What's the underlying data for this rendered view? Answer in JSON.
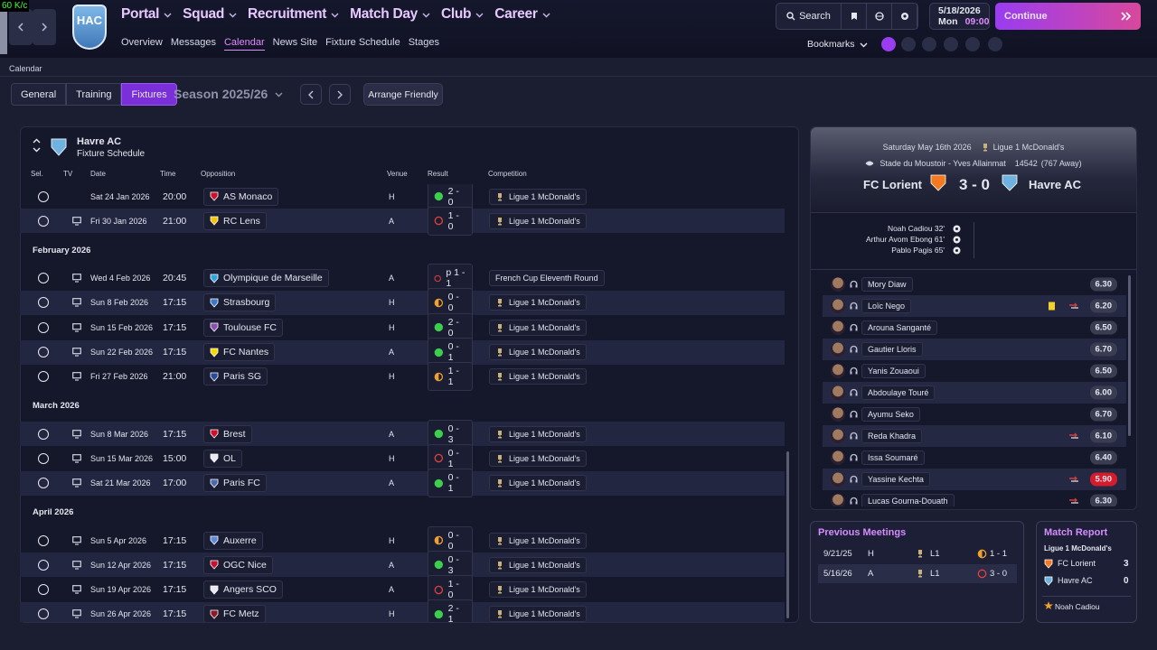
{
  "overlay": "60 K/c",
  "club_badge": "HAC",
  "nav": {
    "menu": [
      "Portal",
      "Squad",
      "Recruitment",
      "Match Day",
      "Club",
      "Career"
    ],
    "submenu": [
      "Overview",
      "Messages",
      "Calendar",
      "News Site",
      "Fixture Schedule",
      "Stages"
    ],
    "active_submenu": 2
  },
  "toolbar": {
    "search": "Search",
    "date": "5/18/2026",
    "weekday": "Mon",
    "time": "09:00",
    "continue": "Continue",
    "bookmarks": "Bookmarks"
  },
  "breadcrumb": "Calendar",
  "tabs": [
    "General",
    "Training",
    "Fixtures"
  ],
  "active_tab": 2,
  "season": "Season 2025/26",
  "arrange_friendly": "Arrange Friendly",
  "fixtures": {
    "team": "Havre AC",
    "subtitle": "Fixture Schedule",
    "columns": [
      "Sel.",
      "TV",
      "Date",
      "Time",
      "Opposition",
      "Venue",
      "Result",
      "Competition"
    ],
    "groups": [
      {
        "rows": [
          {
            "tv": false,
            "date": "Sat 24 Jan 2026",
            "time": "20:00",
            "opponent": "AS Monaco",
            "crest": "#d0102a",
            "venue": "H",
            "outcome": "win",
            "result": "2 - 0",
            "competition": "Ligue 1 McDonald's"
          },
          {
            "tv": true,
            "date": "Fri 30 Jan 2026",
            "time": "21:00",
            "opponent": "RC Lens",
            "crest": "#f5c400",
            "venue": "A",
            "outcome": "loss",
            "result": "1 - 0",
            "competition": "Ligue 1 McDonald's"
          }
        ]
      },
      {
        "heading": "February 2026",
        "rows": [
          {
            "tv": true,
            "date": "Wed 4 Feb 2026",
            "time": "20:45",
            "opponent": "Olympique de Marseille",
            "crest": "#2fa3dc",
            "venue": "A",
            "outcome": "loss",
            "result": "p 1 - 1",
            "competition": "French Cup Eleventh Round"
          },
          {
            "tv": true,
            "date": "Sun 8 Feb 2026",
            "time": "17:15",
            "opponent": "Strasbourg",
            "crest": "#3d78c8",
            "venue": "H",
            "outcome": "draw",
            "result": "0 - 0",
            "competition": "Ligue 1 McDonald's"
          },
          {
            "tv": true,
            "date": "Sun 15 Feb 2026",
            "time": "17:15",
            "opponent": "Toulouse FC",
            "crest": "#8a4fb0",
            "venue": "H",
            "outcome": "win",
            "result": "2 - 0",
            "competition": "Ligue 1 McDonald's"
          },
          {
            "tv": true,
            "date": "Sun 22 Feb 2026",
            "time": "17:15",
            "opponent": "FC Nantes",
            "crest": "#f5d800",
            "venue": "A",
            "outcome": "win",
            "result": "0 - 1",
            "competition": "Ligue 1 McDonald's"
          },
          {
            "tv": true,
            "date": "Fri 27 Feb 2026",
            "time": "21:00",
            "opponent": "Paris SG",
            "crest": "#2a4a9a",
            "venue": "H",
            "outcome": "draw",
            "result": "1 - 1",
            "competition": "Ligue 1 McDonald's"
          }
        ]
      },
      {
        "heading": "March 2026",
        "rows": [
          {
            "tv": true,
            "date": "Sun 8 Mar 2026",
            "time": "17:15",
            "opponent": "Brest",
            "crest": "#d0102a",
            "venue": "A",
            "outcome": "win",
            "result": "0 - 3",
            "competition": "Ligue 1 McDonald's"
          },
          {
            "tv": true,
            "date": "Sun 15 Mar 2026",
            "time": "15:00",
            "opponent": "OL",
            "crest": "#e8e8f0",
            "venue": "H",
            "outcome": "loss",
            "result": "0 - 1",
            "competition": "Ligue 1 McDonald's"
          },
          {
            "tv": true,
            "date": "Sat 21 Mar 2026",
            "time": "17:00",
            "opponent": "Paris FC",
            "crest": "#4a6aa8",
            "venue": "A",
            "outcome": "win",
            "result": "0 - 1",
            "competition": "Ligue 1 McDonald's"
          }
        ]
      },
      {
        "heading": "April 2026",
        "rows": [
          {
            "tv": true,
            "date": "Sun 5 Apr 2026",
            "time": "17:15",
            "opponent": "Auxerre",
            "crest": "#5a8ad8",
            "venue": "H",
            "outcome": "draw",
            "result": "0 - 0",
            "competition": "Ligue 1 McDonald's"
          },
          {
            "tv": true,
            "date": "Sun 12 Apr 2026",
            "time": "17:15",
            "opponent": "OGC Nice",
            "crest": "#c8102e",
            "venue": "A",
            "outcome": "win",
            "result": "0 - 3",
            "competition": "Ligue 1 McDonald's"
          },
          {
            "tv": true,
            "date": "Sun 19 Apr 2026",
            "time": "17:15",
            "opponent": "Angers SCO",
            "crest": "#e8e8f0",
            "venue": "A",
            "outcome": "loss",
            "result": "1 - 0",
            "competition": "Ligue 1 McDonald's"
          },
          {
            "tv": true,
            "date": "Sun 26 Apr 2026",
            "time": "17:15",
            "opponent": "FC Metz",
            "crest": "#8a1a2a",
            "venue": "H",
            "outcome": "win",
            "result": "2 - 1",
            "competition": "Ligue 1 McDonald's"
          }
        ]
      }
    ]
  },
  "match": {
    "date": "Saturday May 16th 2026",
    "competition": "Ligue 1 McDonald's",
    "stadium": "Stade du Moustoir - Yves Allainmat",
    "attendance": "14542",
    "away_fans": "(767 Away)",
    "home": "FC Lorient",
    "home_crest": "#f47920",
    "score": "3 - 0",
    "away": "Havre AC",
    "away_crest": "#6fb2e0",
    "scorers": [
      "Noah Cadiou 32'",
      "Arthur Avom Ebong 61'",
      "Pablo Pagis 65'"
    ],
    "players": [
      {
        "name": "Mory Diaw",
        "rating": "6.30"
      },
      {
        "name": "Loïc Nego",
        "rating": "6.20",
        "card": "yellow",
        "sub": true
      },
      {
        "name": "Arouna Sanganté",
        "rating": "6.50"
      },
      {
        "name": "Gautier Lloris",
        "rating": "6.70"
      },
      {
        "name": "Yanis Zouaoui",
        "rating": "6.50"
      },
      {
        "name": "Abdoulaye Touré",
        "rating": "6.00"
      },
      {
        "name": "Ayumu Seko",
        "rating": "6.70"
      },
      {
        "name": "Reda Khadra",
        "rating": "6.10",
        "sub": true
      },
      {
        "name": "Issa Soumaré",
        "rating": "6.40"
      },
      {
        "name": "Yassine Kechta",
        "rating": "5.90",
        "sub": true,
        "poor": true
      },
      {
        "name": "Lucas Gourna-Douath",
        "rating": "6.30",
        "sub": true
      }
    ]
  },
  "previous_meetings": {
    "title": "Previous Meetings",
    "rows": [
      {
        "date": "9/21/25",
        "venue": "H",
        "competition": "L1",
        "outcome": "draw",
        "result": "1 - 1"
      },
      {
        "date": "5/16/26",
        "venue": "A",
        "competition": "L1",
        "outcome": "loss",
        "result": "3 - 0"
      }
    ]
  },
  "match_report": {
    "title": "Match Report",
    "competition": "Ligue 1 McDonald's",
    "teams": [
      {
        "name": "FC Lorient",
        "crest": "#f47920",
        "goals": 3
      },
      {
        "name": "Havre AC",
        "crest": "#6fb2e0",
        "goals": 0
      }
    ],
    "player_of_match": "Noah Cadiou"
  }
}
